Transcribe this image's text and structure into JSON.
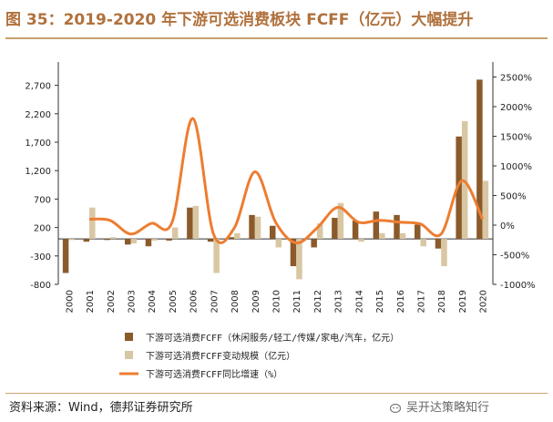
{
  "title": "图 35：2019-2020 年下游可选消费板块 FCFF（亿元）大幅提升",
  "source": "资料来源：Wind，德邦证券研究所",
  "watermark": "吴开达策略知行",
  "colors": {
    "fcff": "#8b5a2b",
    "scale": "#d9c7a3",
    "growth": "#ed7d31",
    "accent": "#b0713c"
  },
  "chart_data": {
    "type": "bar",
    "title": "",
    "xlabel": "",
    "ylabel": "",
    "categories": [
      "2000",
      "2001",
      "2002",
      "2003",
      "2004",
      "2005",
      "2006",
      "2007",
      "2008",
      "2009",
      "2010",
      "2011",
      "2012",
      "2013",
      "2014",
      "2015",
      "2016",
      "2017",
      "2018",
      "2019",
      "2020"
    ],
    "y_left": {
      "ticks": [
        "-800",
        "-300",
        "200",
        "700",
        "1,200",
        "1,700",
        "2,200",
        "2,700"
      ],
      "ylim": [
        -800,
        2950
      ]
    },
    "y_right": {
      "ticks": [
        "-1000%",
        "-500%",
        "0%",
        "500%",
        "1000%",
        "1500%",
        "2000%",
        "2500%"
      ],
      "ylim": [
        -1000,
        2600
      ]
    },
    "series": [
      {
        "name": "下游可选消费FCFF（休闲服务/轻工/传媒/家电/汽车，亿元）",
        "kind": "bar",
        "axis": "left",
        "values": [
          -600,
          -50,
          -20,
          -100,
          -130,
          -30,
          550,
          -50,
          30,
          420,
          230,
          -480,
          -150,
          370,
          320,
          480,
          420,
          250,
          -170,
          1800,
          2800
        ]
      },
      {
        "name": "下游可选消费FCFF变动规模（亿元）",
        "kind": "bar",
        "axis": "left",
        "values": [
          -20,
          550,
          30,
          -80,
          -30,
          200,
          580,
          -600,
          100,
          390,
          -150,
          -710,
          270,
          630,
          -50,
          100,
          100,
          -130,
          -480,
          2070,
          1020
        ]
      },
      {
        "name": "下游可选消费FCFF同比增速（%）",
        "kind": "line",
        "axis": "right",
        "values": [
          null,
          100,
          80,
          -150,
          30,
          50,
          1800,
          -150,
          -50,
          900,
          50,
          -300,
          -50,
          300,
          50,
          80,
          50,
          20,
          -150,
          750,
          100
        ]
      }
    ]
  }
}
